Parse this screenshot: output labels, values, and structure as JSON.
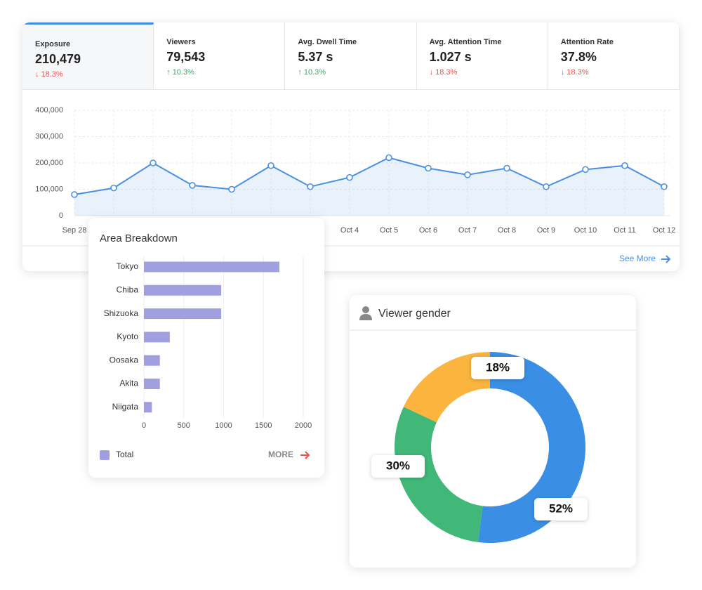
{
  "kpis": [
    {
      "label": "Exposure",
      "value": "210,479",
      "change": "18.3%",
      "direction": "down"
    },
    {
      "label": "Viewers",
      "value": "79,543",
      "change": "10.3%",
      "direction": "up"
    },
    {
      "label": "Avg. Dwell Time",
      "value": "5.37 s",
      "change": "10.3%",
      "direction": "up"
    },
    {
      "label": "Avg. Attention Time",
      "value": "1.027 s",
      "change": "18.3%",
      "direction": "down"
    },
    {
      "label": "Attention Rate",
      "value": "37.8%",
      "change": "18.3%",
      "direction": "down"
    }
  ],
  "see_more": "See More",
  "chart_data": [
    {
      "type": "line",
      "categories": [
        "Sep 28",
        null,
        null,
        null,
        null,
        null,
        null,
        "Oct 4",
        "Oct 5",
        "Oct 6",
        "Oct 7",
        "Oct 8",
        "Oct 9",
        "Oct 10",
        "Oct 11",
        "Oct 12"
      ],
      "values": [
        80000,
        105000,
        200000,
        115000,
        100000,
        190000,
        110000,
        145000,
        220000,
        180000,
        155000,
        180000,
        110000,
        175000,
        190000,
        110000
      ],
      "color": "#4a90e2",
      "ylim": [
        0,
        400000
      ],
      "yticks": [
        0,
        {
          "value": 100000,
          "label": "100,000"
        },
        {
          "value": 200000,
          "label": "200,000"
        },
        {
          "value": 300000,
          "label": "300,000"
        },
        {
          "value": 400000,
          "label": "400,000"
        }
      ],
      "grid": true
    },
    {
      "type": "hbar",
      "title": "Area Breakdown",
      "categories": [
        "Tokyo",
        "Chiba",
        "Shizuoka",
        "Kyoto",
        "Oosaka",
        "Akita",
        "Niigata"
      ],
      "series": [
        {
          "name": "Total",
          "color": "#a0a0e0",
          "values": [
            1700,
            970,
            970,
            325,
            200,
            200,
            100
          ]
        }
      ],
      "xlim": [
        0,
        2000
      ],
      "xticks": [
        0,
        500,
        1000,
        1500,
        2000
      ],
      "grid": true,
      "more": "MORE"
    },
    {
      "type": "donut",
      "title": "Viewer gender",
      "values": [
        52,
        30,
        18
      ],
      "value_labels": [
        "52%",
        "30%",
        "18%"
      ],
      "colors": [
        "#3a8fe4",
        "#41b878",
        "#fbb53f"
      ]
    }
  ]
}
